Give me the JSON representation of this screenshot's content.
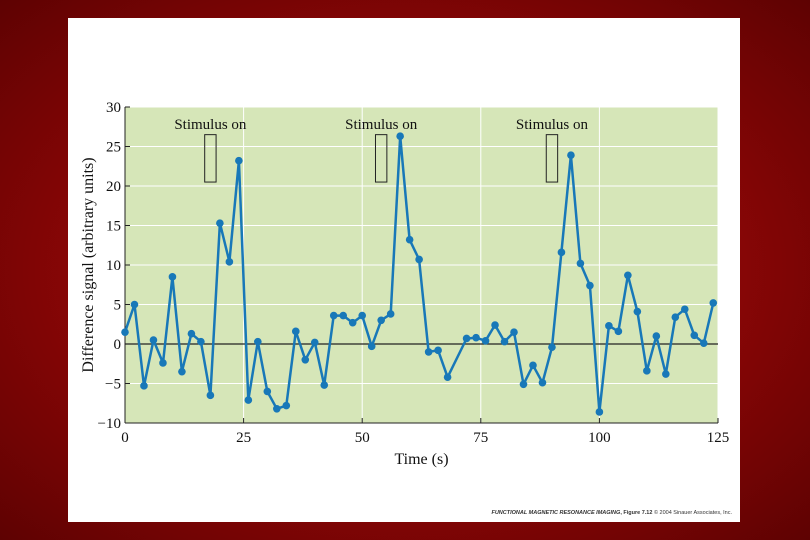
{
  "chart_data": {
    "type": "line",
    "xlabel": "Time (s)",
    "ylabel": "Difference signal (arbitrary units)",
    "xlim": [
      0,
      125
    ],
    "ylim": [
      -10,
      30
    ],
    "x_ticks": [
      0,
      25,
      50,
      75,
      100,
      125
    ],
    "y_ticks": [
      -10,
      -5,
      0,
      5,
      10,
      15,
      20,
      25,
      30
    ],
    "x_tick_labels": [
      "0",
      "25",
      "50",
      "75",
      "100",
      "125"
    ],
    "y_tick_labels": [
      "−10",
      "−5",
      "0",
      "5",
      "10",
      "15",
      "20",
      "25",
      "30"
    ],
    "grid": true,
    "background_color": "#d6e6b8",
    "grid_color": "#ffffff",
    "line_color": "#1878b8",
    "stimulus_label": "Stimulus on",
    "stimuli": [
      {
        "label": "Stimulus on",
        "x_start": 16.8,
        "x_end": 19.2,
        "y_bottom": 20.5,
        "y_top": 26.5
      },
      {
        "label": "Stimulus on",
        "x_start": 52.8,
        "x_end": 55.2,
        "y_bottom": 20.5,
        "y_top": 26.5
      },
      {
        "label": "Stimulus on",
        "x_start": 88.8,
        "x_end": 91.2,
        "y_bottom": 20.5,
        "y_top": 26.5
      }
    ],
    "series": [
      {
        "name": "Difference signal",
        "x": [
          0,
          2,
          4,
          6,
          8,
          10,
          12,
          14,
          16,
          18,
          20,
          22,
          24,
          26,
          28,
          30,
          32,
          34,
          36,
          38,
          40,
          42,
          44,
          46,
          48,
          50,
          52,
          54,
          56,
          58,
          60,
          62,
          64,
          66,
          68,
          72,
          74,
          76,
          78,
          80,
          82,
          84,
          86,
          88,
          90,
          92,
          94,
          96,
          98,
          100,
          102,
          104,
          106,
          108,
          110,
          112,
          114,
          116,
          118,
          120,
          122,
          124
        ],
        "y": [
          1.5,
          5.0,
          -5.3,
          0.5,
          -2.4,
          8.5,
          -3.5,
          1.3,
          0.3,
          -6.5,
          15.3,
          10.4,
          23.2,
          -7.1,
          0.3,
          -6.0,
          -8.2,
          -7.8,
          1.6,
          -2.0,
          0.2,
          -5.2,
          3.6,
          3.6,
          2.7,
          3.6,
          -0.3,
          3.0,
          3.8,
          26.3,
          13.2,
          10.7,
          -1.0,
          -0.8,
          -4.2,
          0.7,
          0.8,
          0.4,
          2.4,
          0.3,
          1.5,
          -5.1,
          -2.7,
          -4.9,
          -0.4,
          11.6,
          23.9,
          10.2,
          7.4,
          -8.6,
          2.3,
          1.6,
          8.7,
          4.1,
          -3.4,
          1.0,
          -3.8,
          3.4,
          4.4,
          1.1,
          0.1,
          5.2
        ]
      }
    ]
  },
  "credit": {
    "figure_title": "FUNCTIONAL MAGNETIC RESONANCE IMAGING",
    "figure_number": ", Figure 7.12",
    "copyright": " © 2004 Sinauer Associates, Inc."
  }
}
